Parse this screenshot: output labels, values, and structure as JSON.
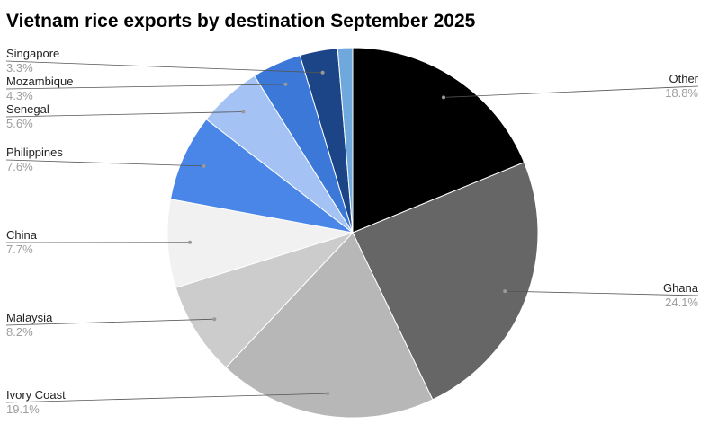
{
  "chart_data": {
    "type": "pie",
    "title": "Vietnam rice exports by destination September 2025",
    "slices": [
      {
        "label": "Other",
        "value": 18.8,
        "percent_label": "18.8%",
        "color": "#000000"
      },
      {
        "label": "Ghana",
        "value": 24.1,
        "percent_label": "24.1%",
        "color": "#666666"
      },
      {
        "label": "Ivory Coast",
        "value": 19.1,
        "percent_label": "19.1%",
        "color": "#b7b7b7"
      },
      {
        "label": "Malaysia",
        "value": 8.2,
        "percent_label": "8.2%",
        "color": "#cccccc"
      },
      {
        "label": "China",
        "value": 7.7,
        "percent_label": "7.7%",
        "color": "#f1f1f1"
      },
      {
        "label": "Philippines",
        "value": 7.6,
        "percent_label": "7.6%",
        "color": "#4a86e8"
      },
      {
        "label": "Senegal",
        "value": 5.6,
        "percent_label": "5.6%",
        "color": "#a4c2f4"
      },
      {
        "label": "Mozambique",
        "value": 4.3,
        "percent_label": "4.3%",
        "color": "#3c78d8"
      },
      {
        "label": "Singapore",
        "value": 3.3,
        "percent_label": "3.3%",
        "color": "#1c4587"
      },
      {
        "label": "",
        "value": 1.3,
        "percent_label": "",
        "color": "#6fa8dc"
      }
    ],
    "start_angle": "12 o'clock",
    "direction": "clockwise",
    "legend": "none"
  }
}
